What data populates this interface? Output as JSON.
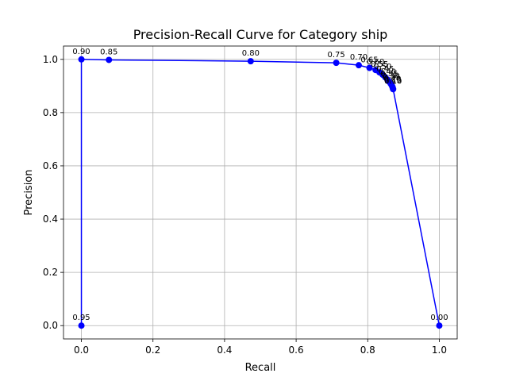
{
  "chart_data": {
    "type": "line",
    "title": "Precision-Recall Curve for Category ship",
    "xlabel": "Recall",
    "ylabel": "Precision",
    "xlim": [
      -0.05,
      1.05
    ],
    "ylim": [
      -0.05,
      1.05
    ],
    "grid": true,
    "color": "#0000ff",
    "x_ticks": [
      0.0,
      0.2,
      0.4,
      0.6,
      0.8,
      1.0
    ],
    "y_ticks": [
      0.0,
      0.2,
      0.4,
      0.6,
      0.8,
      1.0
    ],
    "x_tick_labels": [
      "0.0",
      "0.2",
      "0.4",
      "0.6",
      "0.8",
      "1.0"
    ],
    "y_tick_labels": [
      "0.0",
      "0.2",
      "0.4",
      "0.6",
      "0.8",
      "1.0"
    ],
    "series": [
      {
        "points": [
          {
            "recall": 0.0,
            "precision": 0.0,
            "label": "0.95"
          },
          {
            "recall": 0.0,
            "precision": 1.0,
            "label": "0.90"
          },
          {
            "recall": 0.077,
            "precision": 0.998,
            "label": "0.85"
          },
          {
            "recall": 0.473,
            "precision": 0.993,
            "label": "0.80"
          },
          {
            "recall": 0.712,
            "precision": 0.987,
            "label": "0.75"
          },
          {
            "recall": 0.775,
            "precision": 0.978,
            "label": "0.70"
          },
          {
            "recall": 0.805,
            "precision": 0.968,
            "label": "0.65"
          },
          {
            "recall": 0.822,
            "precision": 0.96,
            "label": "0.60"
          },
          {
            "recall": 0.833,
            "precision": 0.951,
            "label": "0.55"
          },
          {
            "recall": 0.842,
            "precision": 0.942,
            "label": "0.50"
          },
          {
            "recall": 0.849,
            "precision": 0.933,
            "label": "0.45"
          },
          {
            "recall": 0.855,
            "precision": 0.924,
            "label": "0.40"
          },
          {
            "recall": 0.86,
            "precision": 0.916,
            "label": "0.35"
          },
          {
            "recall": 0.864,
            "precision": 0.909,
            "label": "0.30"
          },
          {
            "recall": 0.867,
            "precision": 0.903,
            "label": "0.25"
          },
          {
            "recall": 0.869,
            "precision": 0.897,
            "label": "0.20"
          },
          {
            "recall": 0.87,
            "precision": 0.892,
            "label": "0.15"
          },
          {
            "recall": 0.871,
            "precision": 0.888,
            "label": "0.10"
          },
          {
            "recall": 1.0,
            "precision": 0.0,
            "label": "0.00"
          }
        ]
      }
    ]
  }
}
